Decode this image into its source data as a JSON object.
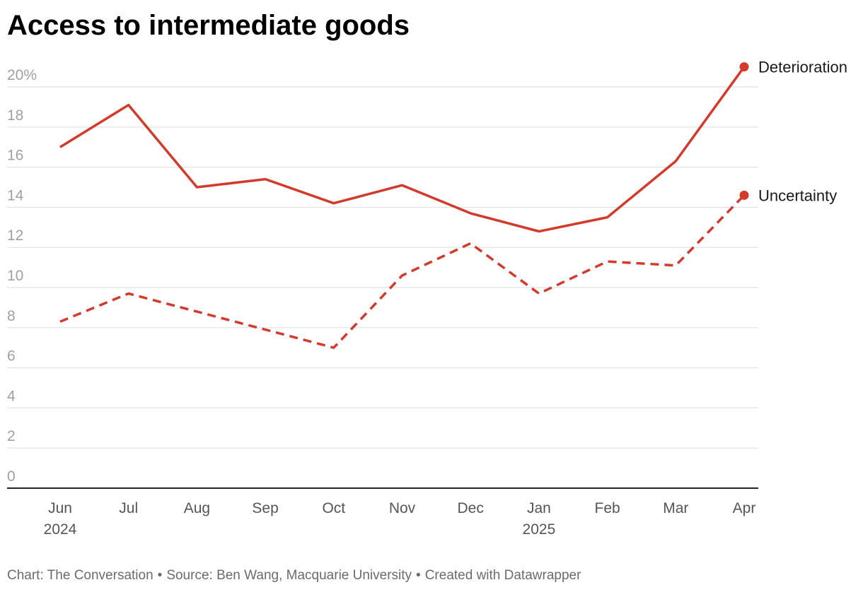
{
  "title": "Access to intermediate goods",
  "footer": {
    "chart_credit": "Chart: The Conversation",
    "source": "Source: Ben Wang, Macquarie University",
    "created": "Created with Datawrapper",
    "separator": "•"
  },
  "colors": {
    "series": "#d33a2c",
    "grid": "#e2e2e2",
    "baseline": "#222222",
    "y_tick_text": "#a0a0a0",
    "x_tick_text": "#555555"
  },
  "chart_data": {
    "type": "line",
    "title": "Access to intermediate goods",
    "x": [
      "Jun",
      "Jul",
      "Aug",
      "Sep",
      "Oct",
      "Nov",
      "Dec",
      "Jan",
      "Feb",
      "Mar",
      "Apr"
    ],
    "x_year_labels": {
      "0": "2024",
      "7": "2025"
    },
    "xlabel": "",
    "ylabel": "",
    "ylim": [
      0,
      20
    ],
    "y_ticks": [
      "0",
      "2",
      "4",
      "6",
      "8",
      "10",
      "12",
      "14",
      "16",
      "18",
      "20%"
    ],
    "grid": true,
    "legend": "direct labels at line ends",
    "series": [
      {
        "name": "Deterioration",
        "style": "solid",
        "values": [
          17.0,
          19.1,
          15.0,
          15.4,
          14.2,
          15.1,
          13.7,
          12.8,
          13.5,
          16.3,
          21.0
        ]
      },
      {
        "name": "Uncertainty",
        "style": "dashed",
        "values": [
          8.3,
          9.7,
          8.8,
          7.9,
          7.0,
          10.6,
          12.2,
          9.7,
          11.3,
          11.1,
          14.6
        ]
      }
    ]
  }
}
